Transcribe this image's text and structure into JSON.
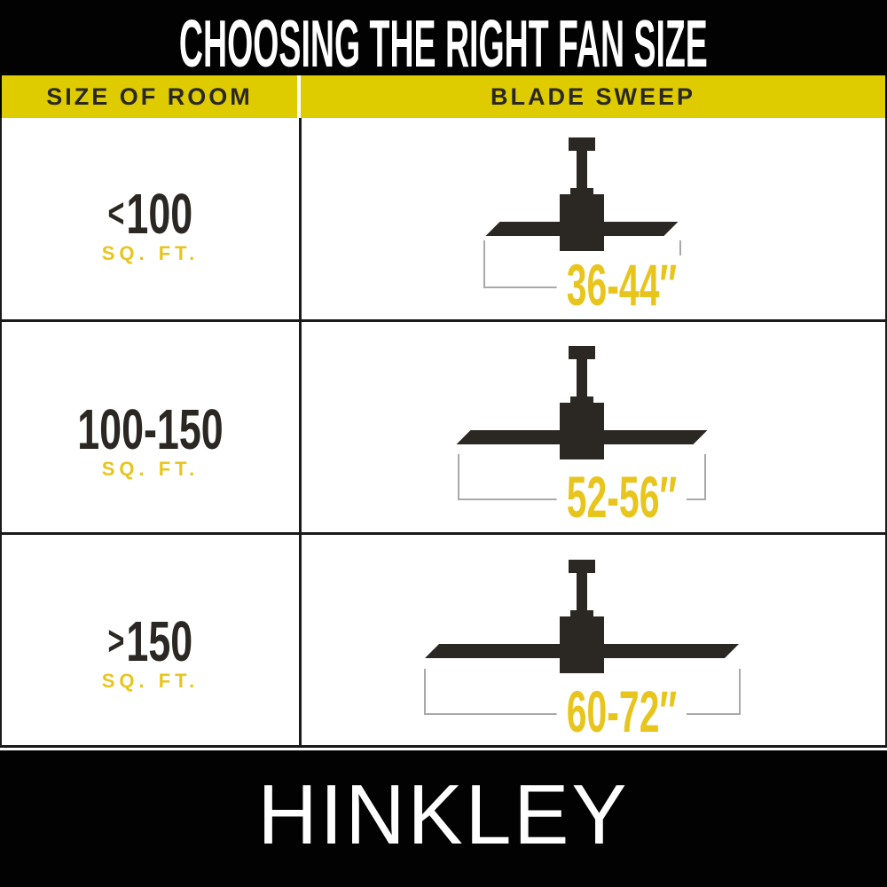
{
  "title": "CHOOSING THE RIGHT FAN SIZE",
  "columns": {
    "room": "SIZE OF ROOM",
    "sweep": "BLADE SWEEP"
  },
  "rows": [
    {
      "room_qualifier": "<",
      "room_value": "100",
      "room_unit": "SQ. FT.",
      "sweep_label": "36-44″",
      "fan_blade_span": 217,
      "bracket_span": 223
    },
    {
      "room_qualifier": "",
      "room_value": "100-150",
      "room_unit": "SQ. FT.",
      "sweep_label": "52-56″",
      "fan_blade_span": 283,
      "bracket_span": 280
    },
    {
      "room_qualifier": ">",
      "room_value": "150",
      "room_unit": "SQ. FT.",
      "sweep_label": "60-72″",
      "fan_blade_span": 354,
      "bracket_span": 357
    }
  ],
  "brand": "HINKLEY",
  "colors": {
    "bar_black": "#020202",
    "grid": "#1c1a18",
    "ink": "#2b2723",
    "header_yellow": "#decc00",
    "accent_yellow": "#e8c51d",
    "bracket_gray": "#a9a9a9",
    "white": "#ffffff"
  }
}
